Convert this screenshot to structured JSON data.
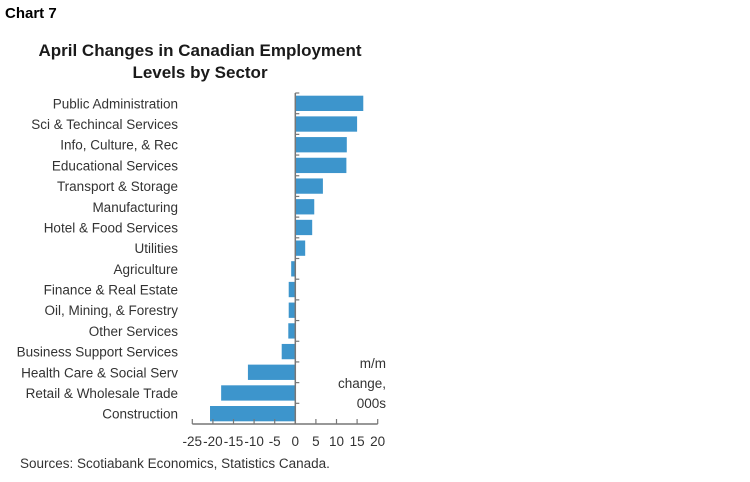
{
  "header": {
    "chart_label": "Chart 7"
  },
  "chart_data": {
    "type": "bar",
    "orientation": "horizontal",
    "title": "April Changes in Canadian Employment Levels by Sector",
    "title_lines": [
      "April Changes in Canadian Employment",
      "Levels by Sector"
    ],
    "xlabel": "m/m change, 000s",
    "xlabel_lines": [
      "m/m",
      "change,",
      "000s"
    ],
    "ylabel": "",
    "xlim": [
      -25,
      20
    ],
    "xticks": [
      -25,
      -20,
      -15,
      -10,
      -5,
      0,
      5,
      10,
      15,
      20
    ],
    "xtick_labels": [
      "-25",
      "-20",
      "-15",
      "-10",
      "-5",
      "0",
      "5",
      "10",
      "15",
      "20"
    ],
    "grid": false,
    "legend": "none",
    "bar_color": "#3d95cc",
    "axis_color": "#777777",
    "categories": [
      "Public Administration",
      "Sci & Techincal Services",
      "Info, Culture, & Rec",
      "Educational Services",
      "Transport & Storage",
      "Manufacturing",
      "Hotel & Food Services",
      "Utilities",
      "Agriculture",
      "Finance & Real Estate",
      "Oil, Mining, & Forestry",
      "Other Services",
      "Business Support Services",
      "Health Care & Social Serv",
      "Retail & Wholesale Trade",
      "Construction"
    ],
    "values": [
      16.5,
      15.0,
      12.5,
      12.4,
      6.7,
      4.6,
      4.1,
      2.4,
      -1.0,
      -1.6,
      -1.6,
      -1.7,
      -3.3,
      -11.5,
      -18.0,
      -20.7
    ],
    "source": "Sources: Scotiabank Economics, Statistics Canada."
  }
}
